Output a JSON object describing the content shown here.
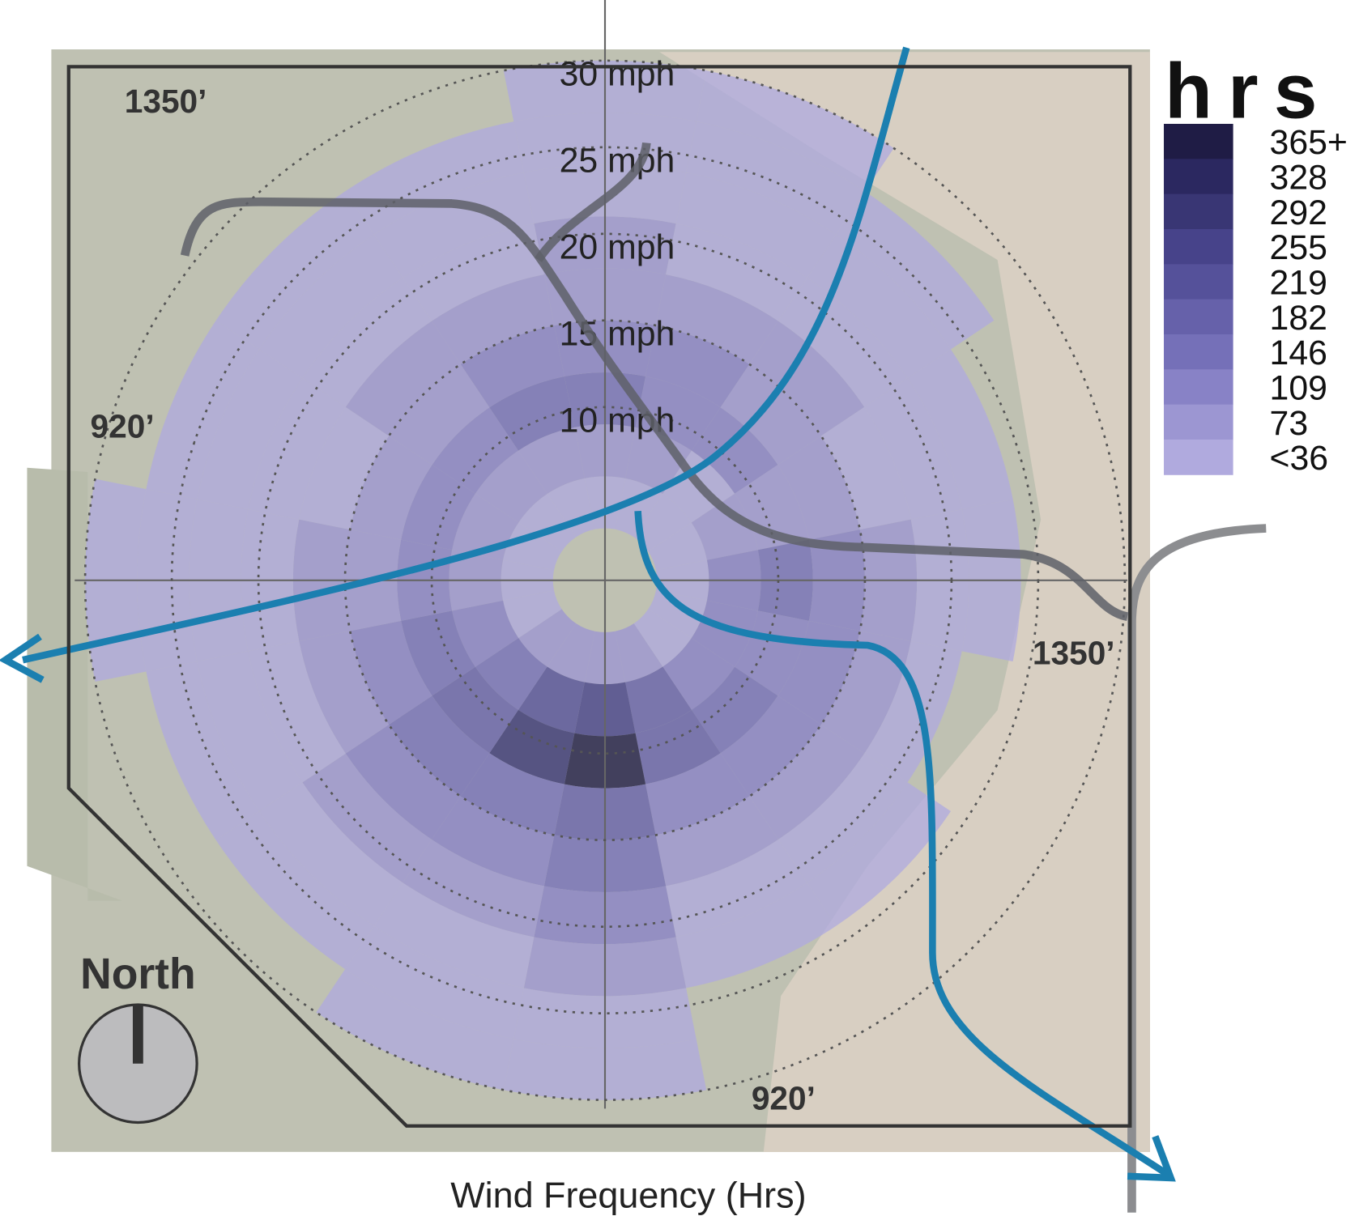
{
  "chart_data": {
    "type": "windrose",
    "xlabel": "Wind Frequency (Hrs)",
    "rlim": [
      0,
      30
    ],
    "speed_bins": [
      3,
      6,
      9,
      12,
      15,
      18,
      21,
      24,
      27,
      30
    ],
    "rticks": [
      {
        "value": 10,
        "label": "10 mph"
      },
      {
        "value": 15,
        "label": "15 mph"
      },
      {
        "value": 20,
        "label": "20 mph"
      },
      {
        "value": 25,
        "label": "25 mph"
      },
      {
        "value": 30,
        "label": "30 mph"
      }
    ],
    "values": [
      [
        60,
        80,
        150,
        120,
        100,
        80,
        60,
        40,
        30
      ],
      [
        60,
        90,
        140,
        110,
        90,
        70,
        50,
        40,
        30
      ],
      [
        50,
        70,
        110,
        100,
        80,
        60,
        40,
        30,
        null
      ],
      [
        50,
        80,
        100,
        90,
        70,
        50,
        30,
        null,
        null
      ],
      [
        60,
        110,
        150,
        120,
        90,
        60,
        40,
        null,
        null
      ],
      [
        60,
        120,
        140,
        110,
        80,
        50,
        null,
        null,
        null
      ],
      [
        70,
        130,
        160,
        120,
        80,
        50,
        30,
        null,
        null
      ],
      [
        80,
        200,
        190,
        140,
        100,
        60,
        40,
        null,
        null
      ],
      [
        100,
        280,
        380,
        200,
        150,
        110,
        80,
        50,
        30
      ],
      [
        90,
        250,
        300,
        180,
        130,
        90,
        60,
        40,
        30
      ],
      [
        80,
        180,
        200,
        150,
        110,
        80,
        50,
        30,
        null
      ],
      [
        60,
        140,
        150,
        120,
        90,
        60,
        40,
        30,
        null
      ],
      [
        50,
        100,
        120,
        100,
        80,
        60,
        40,
        30,
        30
      ],
      [
        50,
        90,
        110,
        90,
        70,
        50,
        40,
        30,
        null
      ],
      [
        50,
        90,
        120,
        100,
        80,
        60,
        40,
        30,
        null
      ],
      [
        60,
        100,
        160,
        130,
        100,
        70,
        50,
        30,
        null
      ]
    ],
    "legend": {
      "title": "hrs",
      "ticks": [
        {
          "value": 365,
          "label": "365+"
        },
        328,
        292,
        255,
        219,
        182,
        146,
        109,
        73,
        {
          "value": 36,
          "label": "<36"
        }
      ],
      "colors": [
        "#1f1c45",
        "#2b2860",
        "#393674",
        "#47438a",
        "#55519a",
        "#6661aa",
        "#7570b8",
        "#8882c6",
        "#9c96d2",
        "#b0aade"
      ]
    }
  },
  "map": {
    "labels": [
      "1350’",
      "920’",
      "1350’",
      "920’"
    ],
    "north": "North"
  }
}
